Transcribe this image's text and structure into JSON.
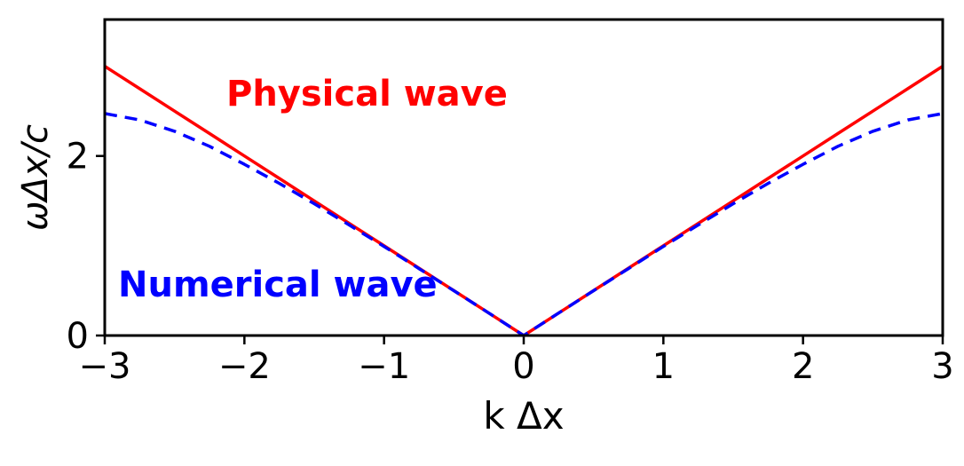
{
  "figure": {
    "background": "#ffffff",
    "axis_color": "#000000"
  },
  "chart_data": {
    "type": "line",
    "title": "",
    "xlabel": "k Δx",
    "ylabel": "ωΔx/c",
    "xlim": [
      -3,
      3
    ],
    "ylim": [
      0,
      3.52
    ],
    "grid": false,
    "legend_position": "none",
    "xticks": {
      "values": [
        -3,
        -2,
        -1,
        0,
        1,
        2,
        3
      ],
      "labels": [
        "−3",
        "−2",
        "−1",
        "0",
        "1",
        "2",
        "3"
      ]
    },
    "yticks": {
      "values": [
        0,
        2
      ],
      "labels": [
        "0",
        "2"
      ]
    },
    "x": [
      -3,
      -2.75,
      -2.5,
      -2.25,
      -2,
      -1.75,
      -1.5,
      -1.25,
      -1,
      -0.75,
      -0.5,
      -0.25,
      0,
      0.25,
      0.5,
      0.75,
      1,
      1.25,
      1.5,
      1.75,
      2,
      2.25,
      2.5,
      2.75,
      3
    ],
    "series": [
      {
        "name": "Physical wave",
        "color": "#ff0000",
        "style": "solid",
        "values": [
          3,
          2.75,
          2.5,
          2.25,
          2,
          1.75,
          1.5,
          1.25,
          1,
          0.75,
          0.5,
          0.25,
          0,
          0.25,
          0.5,
          0.75,
          1,
          1.25,
          1.5,
          1.75,
          2,
          2.25,
          2.5,
          2.75,
          3
        ]
      },
      {
        "name": "Numerical wave",
        "color": "#0000ff",
        "style": "dashed",
        "values": [
          2.473,
          2.402,
          2.275,
          2.108,
          1.907,
          1.695,
          1.468,
          1.232,
          0.992,
          0.746,
          0.499,
          0.25,
          0,
          0.25,
          0.499,
          0.746,
          0.992,
          1.232,
          1.468,
          1.695,
          1.907,
          2.108,
          2.275,
          2.402,
          2.473
        ]
      }
    ],
    "annotations": [
      {
        "text": "Physical wave",
        "color": "#ff0000"
      },
      {
        "text": "Numerical wave",
        "color": "#0000ff"
      }
    ]
  }
}
